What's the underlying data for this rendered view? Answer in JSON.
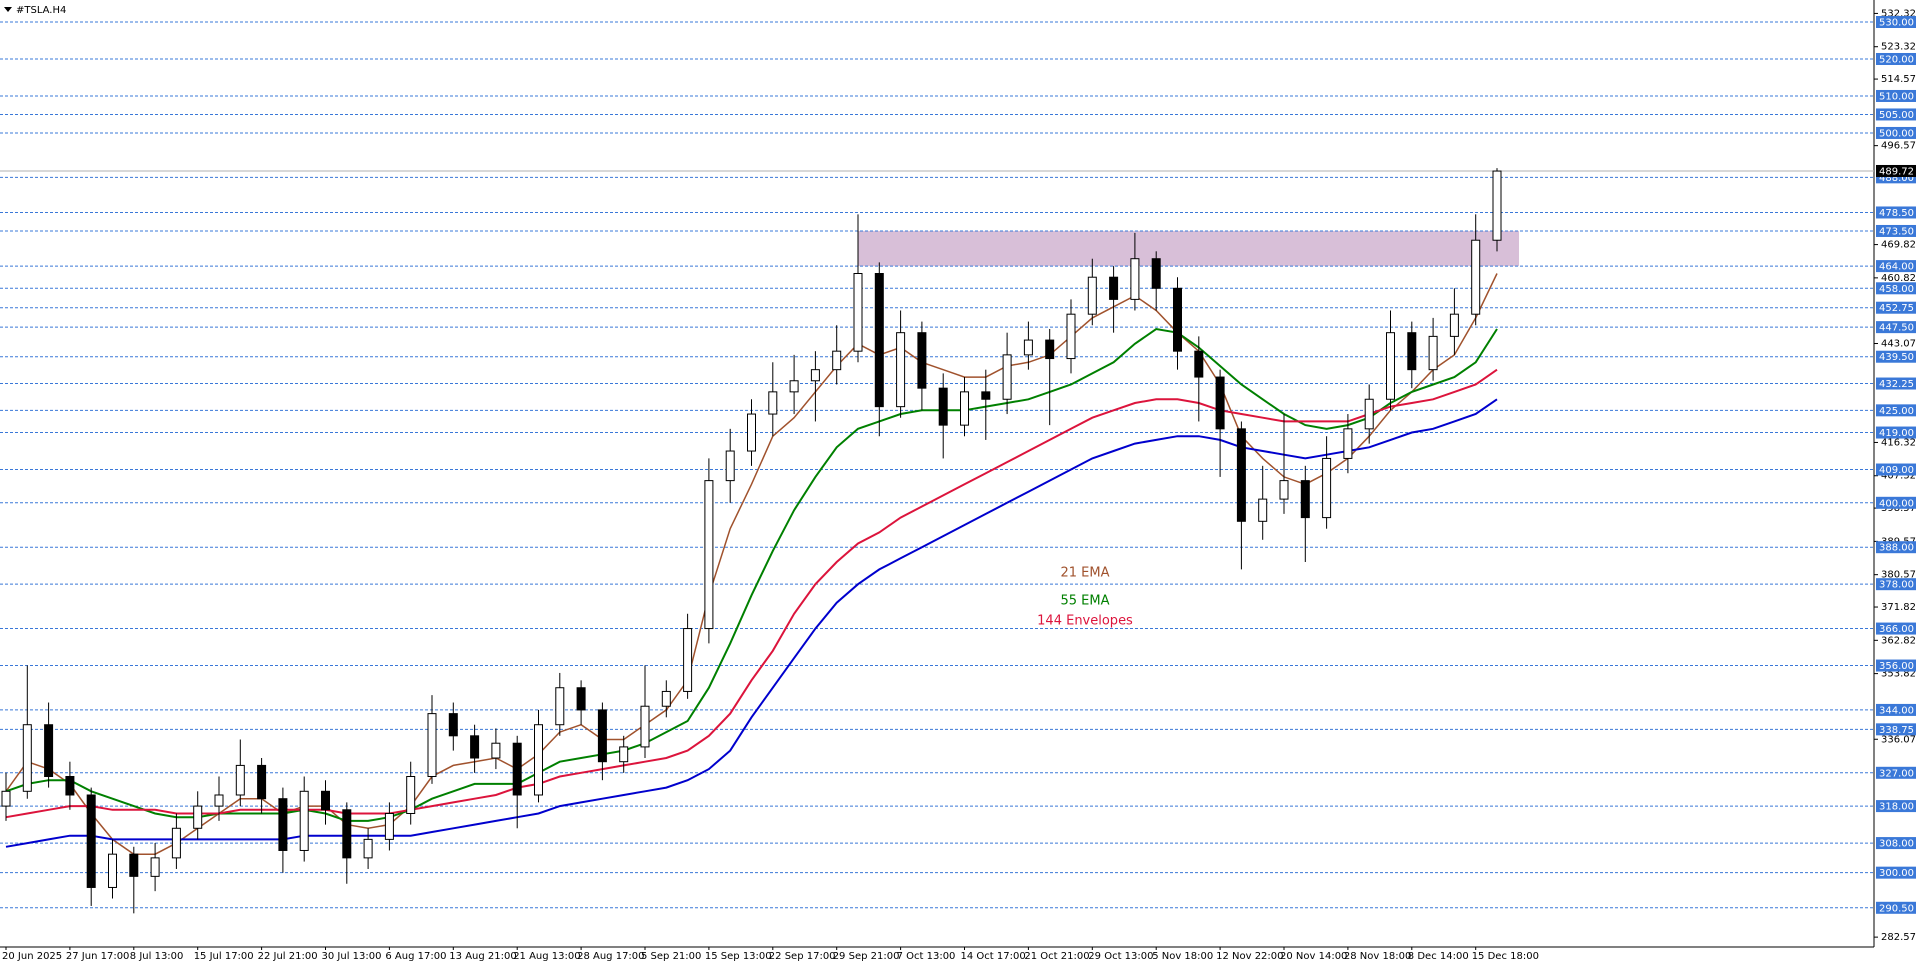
{
  "chart_data": {
    "type": "candlestick",
    "title": "#TSLA.H4",
    "color": "#000000",
    "categories": [
      "20 Jun 2025",
      null,
      null,
      "27 Jun 17:00",
      null,
      null,
      "8 Jul 13:00",
      null,
      null,
      "15 Jul 17:00",
      null,
      null,
      "22 Jul 21:00",
      null,
      null,
      "30 Jul 13:00",
      null,
      null,
      "6 Aug 17:00",
      null,
      null,
      "13 Aug 21:00",
      null,
      null,
      "21 Aug 13:00",
      null,
      null,
      "28 Aug 17:00",
      null,
      null,
      "5 Sep 21:00",
      null,
      null,
      "15 Sep 13:00",
      null,
      null,
      "22 Sep 17:00",
      null,
      null,
      "29 Sep 21:00",
      null,
      null,
      "7 Oct 13:00",
      null,
      null,
      "14 Oct 17:00",
      null,
      null,
      "21 Oct 21:00",
      null,
      null,
      "29 Oct 13:00",
      null,
      null,
      "5 Nov 18:00",
      null,
      null,
      "12 Nov 22:00",
      null,
      null,
      "20 Nov 14:00",
      null,
      null,
      "28 Nov 18:00",
      null,
      null,
      "8 Dec 14:00",
      null,
      null,
      "15 Dec 18:00",
      null
    ],
    "open": [
      318,
      322,
      340,
      326,
      321,
      296,
      305,
      299,
      304,
      312,
      318,
      321,
      329,
      320,
      306,
      322,
      317,
      304,
      309,
      316,
      326,
      343,
      337,
      331,
      335,
      321,
      340,
      350,
      344,
      330,
      334,
      345,
      349,
      366,
      406,
      414,
      424,
      430,
      433,
      436,
      441,
      462,
      426,
      446,
      431,
      421,
      430,
      428,
      440,
      444,
      439,
      451,
      461,
      455,
      466,
      458,
      441,
      434,
      420,
      395,
      401,
      406,
      396,
      412,
      420,
      428,
      446,
      436,
      445,
      451,
      471
    ],
    "high": [
      327,
      356,
      346,
      330,
      323,
      309,
      307,
      308,
      316,
      322,
      326,
      336,
      331,
      323,
      326,
      325,
      319,
      312,
      319,
      330,
      348,
      346,
      340,
      339,
      337,
      344,
      354,
      352,
      346,
      337,
      356,
      352,
      370,
      412,
      420,
      428,
      438,
      440,
      441,
      448,
      478,
      465,
      452,
      449,
      435,
      434,
      436,
      446,
      449,
      447,
      455,
      466,
      464,
      473,
      468,
      461,
      445,
      436,
      422,
      410,
      424,
      410,
      418,
      424,
      432,
      452,
      449,
      450,
      458,
      478,
      490.5
    ],
    "low": [
      314,
      320,
      323,
      317,
      291,
      293,
      289,
      295,
      301,
      309,
      314,
      318,
      316,
      300,
      303,
      313,
      297,
      301,
      306,
      313,
      324,
      333,
      327,
      328,
      312,
      319,
      337,
      340,
      325,
      327,
      331,
      342,
      347,
      362,
      400,
      410,
      418,
      424,
      422,
      432,
      438,
      418,
      423,
      425,
      412,
      418,
      417,
      424,
      436,
      421,
      435,
      448,
      446,
      452,
      452,
      436,
      422,
      407,
      382,
      390,
      397,
      384,
      393,
      408,
      416,
      425,
      431,
      433,
      440,
      448,
      468
    ],
    "close": [
      322,
      340,
      326,
      321,
      296,
      305,
      299,
      304,
      312,
      318,
      321,
      329,
      320,
      306,
      322,
      317,
      304,
      309,
      316,
      326,
      343,
      337,
      331,
      335,
      321,
      340,
      350,
      344,
      330,
      334,
      345,
      349,
      366,
      406,
      414,
      424,
      430,
      433,
      436,
      441,
      462,
      426,
      446,
      431,
      421,
      430,
      428,
      440,
      444,
      439,
      451,
      461,
      455,
      466,
      458,
      441,
      434,
      420,
      395,
      401,
      406,
      396,
      412,
      420,
      428,
      446,
      436,
      445,
      451,
      471,
      489.7
    ],
    "overlays": [
      {
        "name": "21 EMA",
        "color": "#a0522d",
        "values": [
          322,
          330,
          328,
          324,
          316,
          309,
          305,
          305,
          308,
          312,
          316,
          320,
          320,
          316,
          318,
          318,
          313,
          312,
          313,
          318,
          326,
          329,
          330,
          331,
          328,
          332,
          338,
          340,
          336,
          336,
          340,
          344,
          352,
          375,
          393,
          405,
          418,
          423,
          430,
          437,
          443,
          440,
          442,
          438,
          436,
          434,
          434,
          437,
          438,
          440,
          445,
          450,
          453,
          456,
          452,
          446,
          441,
          432,
          418,
          412,
          407,
          405,
          408,
          412,
          418,
          425,
          430,
          436,
          440,
          450,
          462
        ]
      },
      {
        "name": "55 EMA",
        "color": "#008000",
        "values": [
          322,
          324,
          325,
          325,
          322,
          320,
          318,
          316,
          315,
          315,
          316,
          316,
          316,
          316,
          317,
          316,
          314,
          314,
          315,
          317,
          320,
          322,
          324,
          324,
          324,
          327,
          330,
          331,
          332,
          333,
          335,
          338,
          341,
          350,
          362,
          375,
          387,
          398,
          407,
          415,
          420,
          422,
          424,
          425,
          425,
          425,
          426,
          427,
          428,
          430,
          432,
          435,
          438,
          443,
          447,
          446,
          442,
          437,
          432,
          428,
          424,
          421,
          420,
          421,
          423,
          427,
          430,
          432,
          434,
          438,
          447
        ]
      },
      {
        "name": "144 Envelopes",
        "color": "#dc143c",
        "lower_color": "#0000cd",
        "values": [
          315,
          316,
          317,
          318,
          318,
          317,
          317,
          317,
          316,
          316,
          316,
          317,
          317,
          317,
          317,
          317,
          316,
          316,
          316,
          317,
          318,
          319,
          320,
          321,
          323,
          324,
          326,
          327,
          328,
          329,
          330,
          331,
          333,
          337,
          343,
          352,
          360,
          370,
          378,
          384,
          389,
          392,
          396,
          399,
          402,
          405,
          408,
          411,
          414,
          417,
          420,
          423,
          425,
          427,
          428,
          428,
          427,
          425,
          424,
          423,
          422,
          422,
          422,
          422,
          424,
          426,
          427,
          428,
          430,
          432,
          436
        ],
        "lower_values": [
          307,
          308,
          309,
          310,
          310,
          309,
          309,
          309,
          309,
          309,
          309,
          309,
          309,
          309,
          310,
          310,
          310,
          310,
          310,
          310,
          311,
          312,
          313,
          314,
          315,
          316,
          318,
          319,
          320,
          321,
          322,
          323,
          325,
          328,
          333,
          342,
          350,
          358,
          366,
          373,
          378,
          382,
          385,
          388,
          391,
          394,
          397,
          400,
          403,
          406,
          409,
          412,
          414,
          416,
          417,
          418,
          418,
          417,
          415,
          414,
          413,
          412,
          413,
          414,
          415,
          417,
          419,
          420,
          422,
          424,
          428
        ]
      }
    ],
    "zone": {
      "low": 464,
      "high": 473.5,
      "start_index": 40,
      "color": "#d8bfd8"
    },
    "ylim": [
      279.9,
      535.95
    ],
    "yticks": [
      532.32,
      523.32,
      514.57,
      496.57,
      469.82,
      460.82,
      443.07,
      416.32,
      407.32,
      398.57,
      389.57,
      380.57,
      371.82,
      362.82,
      353.82,
      336.07,
      282.57
    ],
    "levels": [
      {
        "value": 530,
        "label": "530.00"
      },
      {
        "value": 520,
        "label": "520.00"
      },
      {
        "value": 510,
        "label": "510.00"
      },
      {
        "value": 505,
        "label": "505.00"
      },
      {
        "value": 500,
        "label": "500.00"
      },
      {
        "value": 488,
        "label": "488.00"
      },
      {
        "value": 478.5,
        "label": "478.50"
      },
      {
        "value": 473.5,
        "label": "473.50"
      },
      {
        "value": 464,
        "label": "464.00"
      },
      {
        "value": 458,
        "label": "458.00"
      },
      452.75,
      {
        "value": 447.5,
        "label": "447.50"
      },
      {
        "value": 439.5,
        "label": "439.50"
      },
      432.25,
      {
        "value": 425,
        "label": "425.00"
      },
      {
        "value": 419,
        "label": "419.00"
      },
      {
        "value": 409,
        "label": "409.00"
      },
      {
        "value": 400,
        "label": "400.00"
      },
      {
        "value": 388,
        "label": "388.00"
      },
      {
        "value": 378,
        "label": "378.00"
      },
      {
        "value": 366,
        "label": "366.00"
      },
      {
        "value": 356,
        "label": "356.00"
      },
      {
        "value": 344,
        "label": "344.00"
      },
      338.75,
      {
        "value": 327,
        "label": "327.00"
      },
      {
        "value": 318,
        "label": "318.00"
      },
      {
        "value": 308,
        "label": "308.00"
      },
      {
        "value": 300,
        "label": "300.00"
      },
      {
        "value": 290.5,
        "label": "290.50"
      }
    ],
    "level_color": "#3a78d8",
    "last_price": 489.72
  }
}
